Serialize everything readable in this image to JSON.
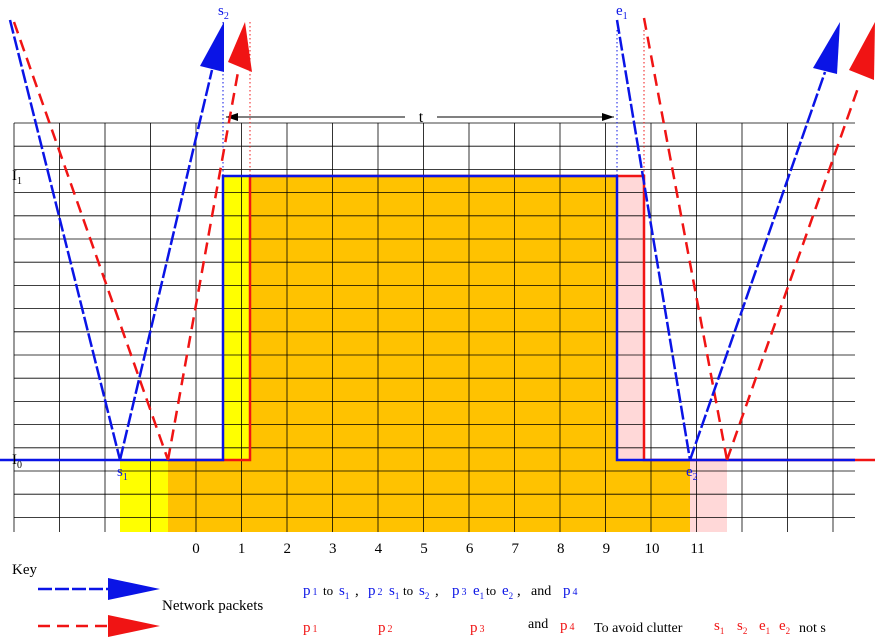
{
  "axis": {
    "x_ticks": [
      "0",
      "1",
      "2",
      "3",
      "4",
      "5",
      "6",
      "7",
      "8",
      "9",
      "10",
      "11"
    ],
    "y_levels": [
      {
        "main": "I",
        "sub": "1"
      },
      {
        "main": "I",
        "sub": "0"
      }
    ]
  },
  "interval": {
    "label": "t"
  },
  "points": {
    "s1": {
      "main": "s",
      "sub": "1"
    },
    "s2": {
      "main": "s",
      "sub": "2"
    },
    "e1": {
      "main": "e",
      "sub": "1"
    },
    "e2": {
      "main": "e",
      "sub": "2"
    }
  },
  "key": {
    "title": "Key",
    "network_label": "Network packets",
    "blue_row": {
      "p1": {
        "main": "p",
        "sub": "1"
      },
      "to1": "to",
      "s1": {
        "main": "s",
        "sub": "1"
      },
      "comma1": ",",
      "p2": {
        "main": "p",
        "sub": "2"
      },
      "s1b": {
        "main": "s",
        "sub": "1"
      },
      "to2": "to",
      "s2": {
        "main": "s",
        "sub": "2"
      },
      "comma2": ",",
      "p3": {
        "main": "p",
        "sub": "3"
      },
      "e1": {
        "main": "e",
        "sub": "1"
      },
      "to3": "to",
      "e2": {
        "main": "e",
        "sub": "2"
      },
      "comma3": ",",
      "and": "and",
      "p4": {
        "main": "p",
        "sub": "4"
      }
    },
    "red_row": {
      "p1": {
        "main": "p",
        "sub": "1"
      },
      "p2": {
        "main": "p",
        "sub": "2"
      },
      "p3": {
        "main": "p",
        "sub": "3"
      },
      "and": "and",
      "p4": {
        "main": "p",
        "sub": "4"
      },
      "note": "To avoid clutter",
      "s1": {
        "main": "s",
        "sub": "1"
      },
      "s2": {
        "main": "s",
        "sub": "2"
      },
      "e1": {
        "main": "e",
        "sub": "1"
      },
      "e2": {
        "main": "e",
        "sub": "2"
      },
      "not_shown": "not s"
    }
  },
  "colors": {
    "blue": "#0a14e6",
    "red": "#f01414",
    "orange": "#ffc200",
    "yellow": "#ffff00",
    "pink": "#ffd8d8",
    "grid": "#000000"
  }
}
